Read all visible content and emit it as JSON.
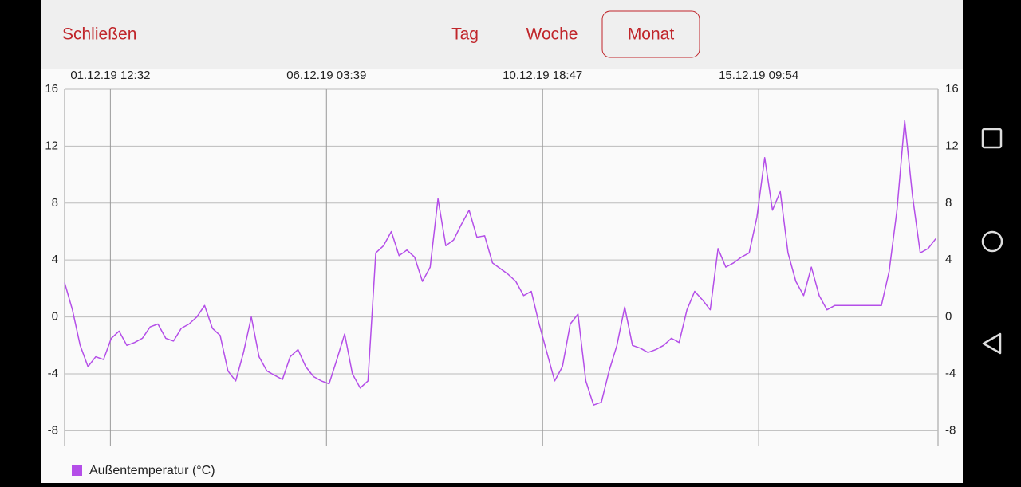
{
  "header": {
    "close": "Schließen",
    "tabs": [
      {
        "label": "Tag"
      },
      {
        "label": "Woche"
      },
      {
        "label": "Monat",
        "selected": true
      }
    ]
  },
  "chart_data": {
    "type": "line",
    "x": [
      "30.11.19 13:00",
      "30.11.19 17:00",
      "30.11.19 21:00",
      "01.12.19 01:00",
      "01.12.19 05:00",
      "01.12.19 09:00",
      "01.12.19 13:00",
      "01.12.19 17:00",
      "01.12.19 21:00",
      "02.12.19 01:00",
      "02.12.19 05:00",
      "02.12.19 09:00",
      "02.12.19 13:00",
      "02.12.19 17:00",
      "02.12.19 21:00",
      "03.12.19 01:00",
      "03.12.19 05:00",
      "03.12.19 09:00",
      "03.12.19 13:00",
      "03.12.19 17:00",
      "03.12.19 21:00",
      "04.12.19 01:00",
      "04.12.19 05:00",
      "04.12.19 09:00",
      "04.12.19 13:00",
      "04.12.19 17:00",
      "04.12.19 21:00",
      "05.12.19 01:00",
      "05.12.19 05:00",
      "05.12.19 09:00",
      "05.12.19 13:00",
      "05.12.19 17:00",
      "05.12.19 21:00",
      "06.12.19 01:00",
      "06.12.19 05:00",
      "06.12.19 09:00",
      "06.12.19 13:00",
      "06.12.19 17:00",
      "06.12.19 21:00",
      "07.12.19 01:00",
      "07.12.19 05:00",
      "07.12.19 09:00",
      "07.12.19 13:00",
      "07.12.19 17:00",
      "07.12.19 21:00",
      "08.12.19 01:00",
      "08.12.19 05:00",
      "08.12.19 09:00",
      "08.12.19 13:00",
      "08.12.19 17:00",
      "08.12.19 21:00",
      "09.12.19 01:00",
      "09.12.19 05:00",
      "09.12.19 09:00",
      "09.12.19 13:00",
      "09.12.19 17:00",
      "09.12.19 21:00",
      "10.12.19 01:00",
      "10.12.19 05:00",
      "10.12.19 09:00",
      "10.12.19 13:00",
      "10.12.19 17:00",
      "10.12.19 21:00",
      "11.12.19 01:00",
      "11.12.19 05:00",
      "11.12.19 09:00",
      "11.12.19 13:00",
      "11.12.19 17:00",
      "11.12.19 21:00",
      "12.12.19 01:00",
      "12.12.19 05:00",
      "12.12.19 09:00",
      "12.12.19 13:00",
      "12.12.19 17:00",
      "12.12.19 21:00",
      "13.12.19 01:00",
      "13.12.19 05:00",
      "13.12.19 09:00",
      "13.12.19 13:00",
      "13.12.19 17:00",
      "13.12.19 21:00",
      "14.12.19 01:00",
      "14.12.19 05:00",
      "14.12.19 09:00",
      "14.12.19 13:00",
      "14.12.19 17:00",
      "14.12.19 21:00",
      "15.12.19 01:00",
      "15.12.19 05:00",
      "15.12.19 09:00",
      "15.12.19 13:00",
      "15.12.19 17:00",
      "15.12.19 21:00",
      "16.12.19 01:00",
      "16.12.19 05:00",
      "16.12.19 09:00",
      "16.12.19 13:00",
      "16.12.19 17:00",
      "16.12.19 21:00",
      "17.12.19 01:00",
      "17.12.19 05:00",
      "17.12.19 09:00",
      "17.12.19 13:00",
      "17.12.19 17:00",
      "17.12.19 21:00",
      "18.12.19 01:00",
      "18.12.19 05:00",
      "18.12.19 09:00",
      "18.12.19 13:00",
      "18.12.19 17:00",
      "18.12.19 21:00",
      "19.12.19 01:00",
      "19.12.19 05:00"
    ],
    "series": [
      {
        "name": "Außentemperatur (°C)",
        "color": "#b44ee8",
        "values": [
          2.4,
          0.5,
          -2.0,
          -3.5,
          -2.8,
          -3.0,
          -1.5,
          -1.0,
          -2.0,
          -1.8,
          -1.5,
          -0.7,
          -0.5,
          -1.5,
          -1.7,
          -0.8,
          -0.5,
          0.0,
          0.8,
          -0.8,
          -1.3,
          -3.8,
          -4.5,
          -2.5,
          0.0,
          -2.8,
          -3.8,
          -4.1,
          -4.4,
          -2.8,
          -2.3,
          -3.5,
          -4.2,
          -4.5,
          -4.7,
          -3.0,
          -1.2,
          -4.0,
          -5.0,
          -4.5,
          4.5,
          5.0,
          6.0,
          4.3,
          4.7,
          4.2,
          2.5,
          3.5,
          8.3,
          5.0,
          5.4,
          6.5,
          7.5,
          5.6,
          5.7,
          3.8,
          3.4,
          3.0,
          2.5,
          1.5,
          1.8,
          -0.5,
          -2.5,
          -4.5,
          -3.5,
          -0.5,
          0.2,
          -4.5,
          -6.2,
          -6.0,
          -3.8,
          -2.0,
          0.7,
          -2.0,
          -2.2,
          -2.5,
          -2.3,
          -2.0,
          -1.5,
          -1.8,
          0.5,
          1.8,
          1.2,
          0.5,
          4.8,
          3.5,
          3.8,
          4.2,
          4.5,
          7.0,
          11.2,
          7.5,
          8.8,
          4.5,
          2.5,
          1.5,
          3.5,
          1.5,
          0.5,
          0.8,
          0.8,
          0.8,
          0.8,
          0.8,
          0.8,
          0.8,
          3.2,
          7.5,
          13.8,
          8.5,
          4.5,
          4.8,
          5.5
        ]
      }
    ],
    "xlim": [
      "30.11.19 13:00",
      "19.12.19 06:08"
    ],
    "xticks": [
      "01.12.19 12:32",
      "06.12.19 03:39",
      "10.12.19 18:47",
      "15.12.19 09:54"
    ],
    "ylim": [
      -9.1,
      16
    ],
    "yticks": [
      -8,
      -4,
      0,
      4,
      8,
      12,
      16
    ],
    "grid": true,
    "legend": "bottom-left"
  }
}
